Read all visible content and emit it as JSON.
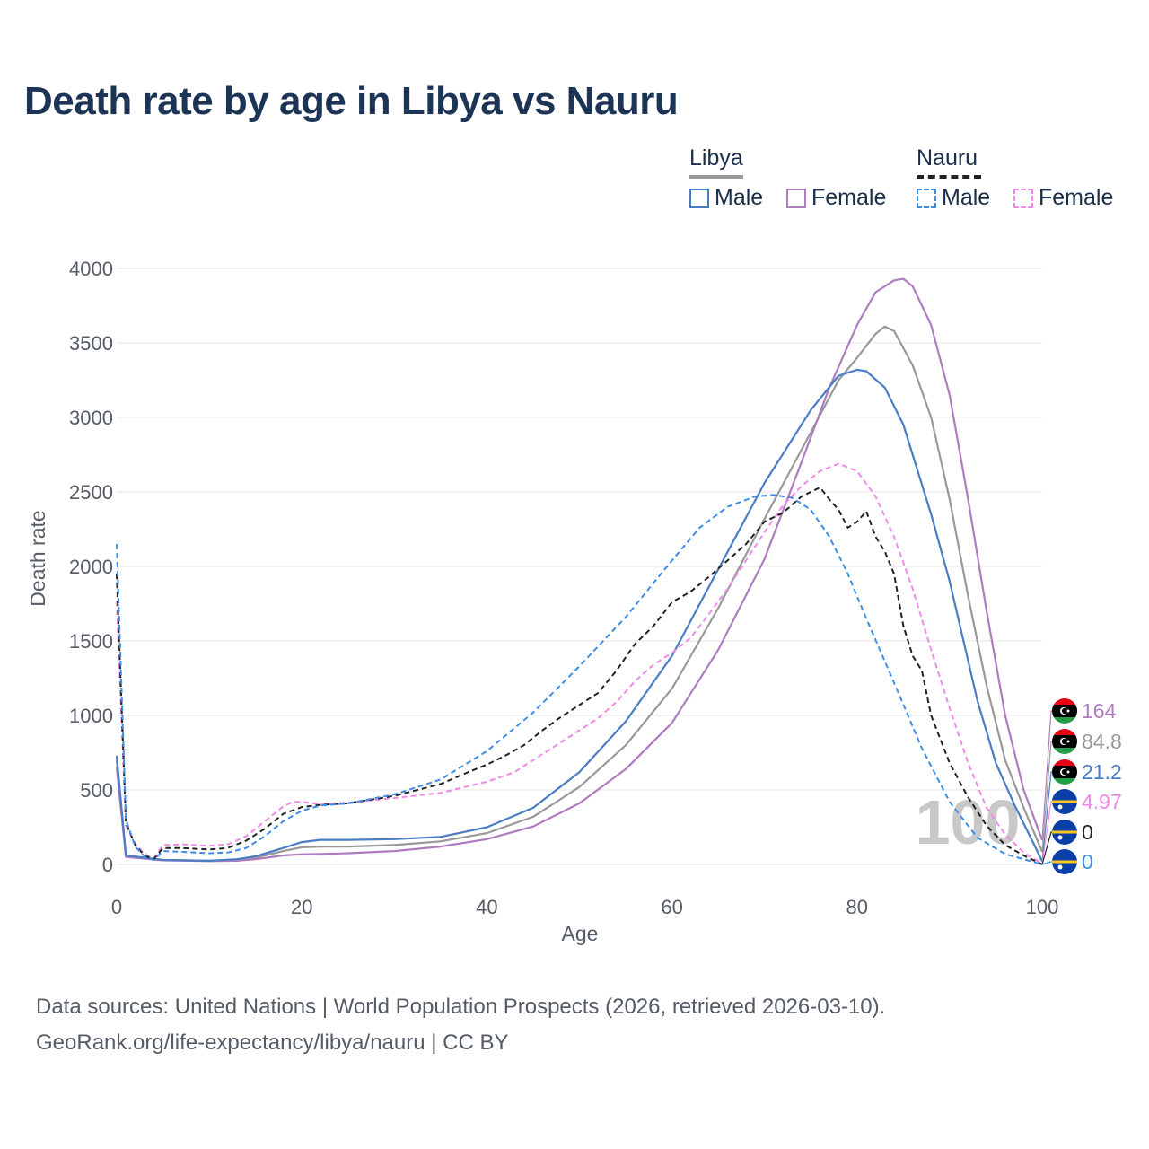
{
  "title": "Death rate by age in Libya vs Nauru",
  "legend": {
    "groups": [
      {
        "name": "Libya",
        "line_color": "#999999",
        "dash": false
      },
      {
        "name": "Nauru",
        "line_color": "#222222",
        "dash": true
      }
    ],
    "items": [
      {
        "label": "Male",
        "color": "#4a7dc4",
        "dash": false
      },
      {
        "label": "Female",
        "color": "#b07cc0",
        "dash": false
      },
      {
        "label": "Male",
        "color": "#3d8ee8",
        "dash": true
      },
      {
        "label": "Female",
        "color": "#f08ae8",
        "dash": true
      }
    ]
  },
  "footer": {
    "line1": "Data sources: United Nations | World Population Prospects (2026, retrieved 2026-03-10).",
    "line2": "GeoRank.org/life-expectancy/libya/nauru | CC BY"
  },
  "chart_data": {
    "type": "line",
    "title": "Death rate by age in Libya vs Nauru",
    "xlabel": "Age",
    "ylabel": "Death rate",
    "xlim": [
      0,
      100
    ],
    "ylim": [
      0,
      4000
    ],
    "xticks": [
      0,
      20,
      40,
      60,
      80,
      100
    ],
    "yticks": [
      0,
      500,
      1000,
      1500,
      2000,
      2500,
      3000,
      3500,
      4000
    ],
    "grid": true,
    "age_watermark": "100",
    "series": [
      {
        "name": "Libya Male",
        "color": "#4a7dc4",
        "dash": false,
        "end_label": "21.2",
        "flag": "libya",
        "points": [
          [
            0,
            730
          ],
          [
            1,
            60
          ],
          [
            5,
            30
          ],
          [
            10,
            25
          ],
          [
            13,
            35
          ],
          [
            15,
            55
          ],
          [
            18,
            110
          ],
          [
            20,
            150
          ],
          [
            22,
            165
          ],
          [
            25,
            165
          ],
          [
            30,
            170
          ],
          [
            35,
            185
          ],
          [
            40,
            250
          ],
          [
            45,
            380
          ],
          [
            50,
            620
          ],
          [
            55,
            960
          ],
          [
            60,
            1400
          ],
          [
            65,
            1980
          ],
          [
            70,
            2560
          ],
          [
            75,
            3050
          ],
          [
            78,
            3280
          ],
          [
            80,
            3320
          ],
          [
            81,
            3310
          ],
          [
            83,
            3200
          ],
          [
            85,
            2950
          ],
          [
            88,
            2350
          ],
          [
            90,
            1900
          ],
          [
            93,
            1100
          ],
          [
            95,
            680
          ],
          [
            97,
            400
          ],
          [
            99,
            150
          ],
          [
            100,
            21.2
          ]
        ]
      },
      {
        "name": "Libya Both",
        "color": "#999999",
        "dash": false,
        "end_label": "84.8",
        "flag": "libya",
        "points": [
          [
            0,
            700
          ],
          [
            1,
            55
          ],
          [
            5,
            30
          ],
          [
            10,
            24
          ],
          [
            13,
            30
          ],
          [
            15,
            45
          ],
          [
            18,
            90
          ],
          [
            20,
            115
          ],
          [
            22,
            120
          ],
          [
            25,
            120
          ],
          [
            30,
            130
          ],
          [
            35,
            155
          ],
          [
            40,
            210
          ],
          [
            45,
            320
          ],
          [
            50,
            520
          ],
          [
            55,
            800
          ],
          [
            60,
            1180
          ],
          [
            65,
            1720
          ],
          [
            70,
            2320
          ],
          [
            75,
            2900
          ],
          [
            78,
            3250
          ],
          [
            80,
            3400
          ],
          [
            82,
            3560
          ],
          [
            83,
            3610
          ],
          [
            84,
            3580
          ],
          [
            86,
            3350
          ],
          [
            88,
            3000
          ],
          [
            90,
            2450
          ],
          [
            92,
            1800
          ],
          [
            94,
            1200
          ],
          [
            96,
            700
          ],
          [
            98,
            380
          ],
          [
            100,
            84.8
          ]
        ]
      },
      {
        "name": "Libya Female",
        "color": "#b07cc0",
        "dash": false,
        "end_label": "164",
        "flag": "libya",
        "points": [
          [
            0,
            650
          ],
          [
            1,
            50
          ],
          [
            5,
            28
          ],
          [
            10,
            22
          ],
          [
            13,
            25
          ],
          [
            15,
            35
          ],
          [
            18,
            60
          ],
          [
            20,
            68
          ],
          [
            22,
            70
          ],
          [
            25,
            75
          ],
          [
            30,
            90
          ],
          [
            35,
            120
          ],
          [
            40,
            170
          ],
          [
            45,
            255
          ],
          [
            50,
            410
          ],
          [
            55,
            640
          ],
          [
            60,
            950
          ],
          [
            65,
            1440
          ],
          [
            70,
            2050
          ],
          [
            74,
            2700
          ],
          [
            77,
            3200
          ],
          [
            80,
            3620
          ],
          [
            82,
            3840
          ],
          [
            84,
            3920
          ],
          [
            85,
            3930
          ],
          [
            86,
            3880
          ],
          [
            88,
            3620
          ],
          [
            90,
            3150
          ],
          [
            92,
            2450
          ],
          [
            94,
            1700
          ],
          [
            96,
            1000
          ],
          [
            98,
            500
          ],
          [
            100,
            164
          ]
        ]
      },
      {
        "name": "Nauru Both",
        "color": "#222222",
        "dash": true,
        "end_label": "0",
        "flag": "nauru",
        "points": [
          [
            0,
            1950
          ],
          [
            1,
            280
          ],
          [
            2,
            130
          ],
          [
            3,
            60
          ],
          [
            4,
            35
          ],
          [
            5,
            110
          ],
          [
            7,
            110
          ],
          [
            10,
            100
          ],
          [
            12,
            110
          ],
          [
            14,
            160
          ],
          [
            16,
            240
          ],
          [
            18,
            340
          ],
          [
            20,
            385
          ],
          [
            22,
            400
          ],
          [
            25,
            410
          ],
          [
            30,
            460
          ],
          [
            35,
            540
          ],
          [
            38,
            620
          ],
          [
            40,
            670
          ],
          [
            42,
            730
          ],
          [
            44,
            800
          ],
          [
            46,
            900
          ],
          [
            48,
            990
          ],
          [
            50,
            1070
          ],
          [
            52,
            1150
          ],
          [
            54,
            1300
          ],
          [
            56,
            1480
          ],
          [
            58,
            1600
          ],
          [
            60,
            1760
          ],
          [
            62,
            1830
          ],
          [
            64,
            1930
          ],
          [
            66,
            2040
          ],
          [
            68,
            2150
          ],
          [
            70,
            2300
          ],
          [
            72,
            2360
          ],
          [
            74,
            2470
          ],
          [
            76,
            2530
          ],
          [
            77,
            2450
          ],
          [
            78,
            2380
          ],
          [
            79,
            2260
          ],
          [
            80,
            2300
          ],
          [
            81,
            2370
          ],
          [
            82,
            2200
          ],
          [
            83,
            2100
          ],
          [
            84,
            1950
          ],
          [
            85,
            1600
          ],
          [
            86,
            1400
          ],
          [
            87,
            1300
          ],
          [
            88,
            1000
          ],
          [
            90,
            680
          ],
          [
            92,
            450
          ],
          [
            94,
            260
          ],
          [
            96,
            130
          ],
          [
            98,
            60
          ],
          [
            100,
            0
          ]
        ]
      },
      {
        "name": "Nauru Male",
        "color": "#3d8ee8",
        "dash": true,
        "end_label": "0",
        "flag": "nauru",
        "points": [
          [
            0,
            2150
          ],
          [
            1,
            300
          ],
          [
            2,
            120
          ],
          [
            3,
            55
          ],
          [
            4,
            30
          ],
          [
            5,
            90
          ],
          [
            7,
            85
          ],
          [
            10,
            75
          ],
          [
            12,
            80
          ],
          [
            14,
            110
          ],
          [
            16,
            190
          ],
          [
            18,
            290
          ],
          [
            20,
            360
          ],
          [
            22,
            395
          ],
          [
            25,
            410
          ],
          [
            30,
            470
          ],
          [
            35,
            570
          ],
          [
            40,
            760
          ],
          [
            45,
            1020
          ],
          [
            50,
            1330
          ],
          [
            55,
            1660
          ],
          [
            60,
            2040
          ],
          [
            63,
            2260
          ],
          [
            66,
            2400
          ],
          [
            69,
            2470
          ],
          [
            71,
            2480
          ],
          [
            73,
            2460
          ],
          [
            75,
            2380
          ],
          [
            77,
            2200
          ],
          [
            79,
            1950
          ],
          [
            81,
            1650
          ],
          [
            84,
            1220
          ],
          [
            87,
            780
          ],
          [
            90,
            420
          ],
          [
            93,
            180
          ],
          [
            96,
            70
          ],
          [
            100,
            0
          ]
        ]
      },
      {
        "name": "Nauru Female",
        "color": "#f08ae8",
        "dash": true,
        "end_label": "4.97",
        "flag": "nauru",
        "points": [
          [
            0,
            1770
          ],
          [
            1,
            260
          ],
          [
            2,
            140
          ],
          [
            3,
            70
          ],
          [
            4,
            40
          ],
          [
            5,
            130
          ],
          [
            7,
            135
          ],
          [
            10,
            125
          ],
          [
            12,
            135
          ],
          [
            14,
            190
          ],
          [
            16,
            290
          ],
          [
            18,
            390
          ],
          [
            19,
            420
          ],
          [
            20,
            420
          ],
          [
            22,
            405
          ],
          [
            25,
            415
          ],
          [
            30,
            445
          ],
          [
            35,
            480
          ],
          [
            40,
            555
          ],
          [
            43,
            620
          ],
          [
            45,
            700
          ],
          [
            48,
            820
          ],
          [
            50,
            900
          ],
          [
            52,
            980
          ],
          [
            54,
            1090
          ],
          [
            56,
            1230
          ],
          [
            58,
            1340
          ],
          [
            60,
            1420
          ],
          [
            62,
            1520
          ],
          [
            64,
            1680
          ],
          [
            66,
            1850
          ],
          [
            68,
            2040
          ],
          [
            70,
            2230
          ],
          [
            72,
            2410
          ],
          [
            74,
            2540
          ],
          [
            76,
            2640
          ],
          [
            78,
            2690
          ],
          [
            80,
            2640
          ],
          [
            82,
            2470
          ],
          [
            84,
            2200
          ],
          [
            86,
            1850
          ],
          [
            88,
            1440
          ],
          [
            90,
            1050
          ],
          [
            92,
            680
          ],
          [
            94,
            380
          ],
          [
            96,
            200
          ],
          [
            98,
            80
          ],
          [
            100,
            4.97
          ]
        ]
      }
    ]
  }
}
